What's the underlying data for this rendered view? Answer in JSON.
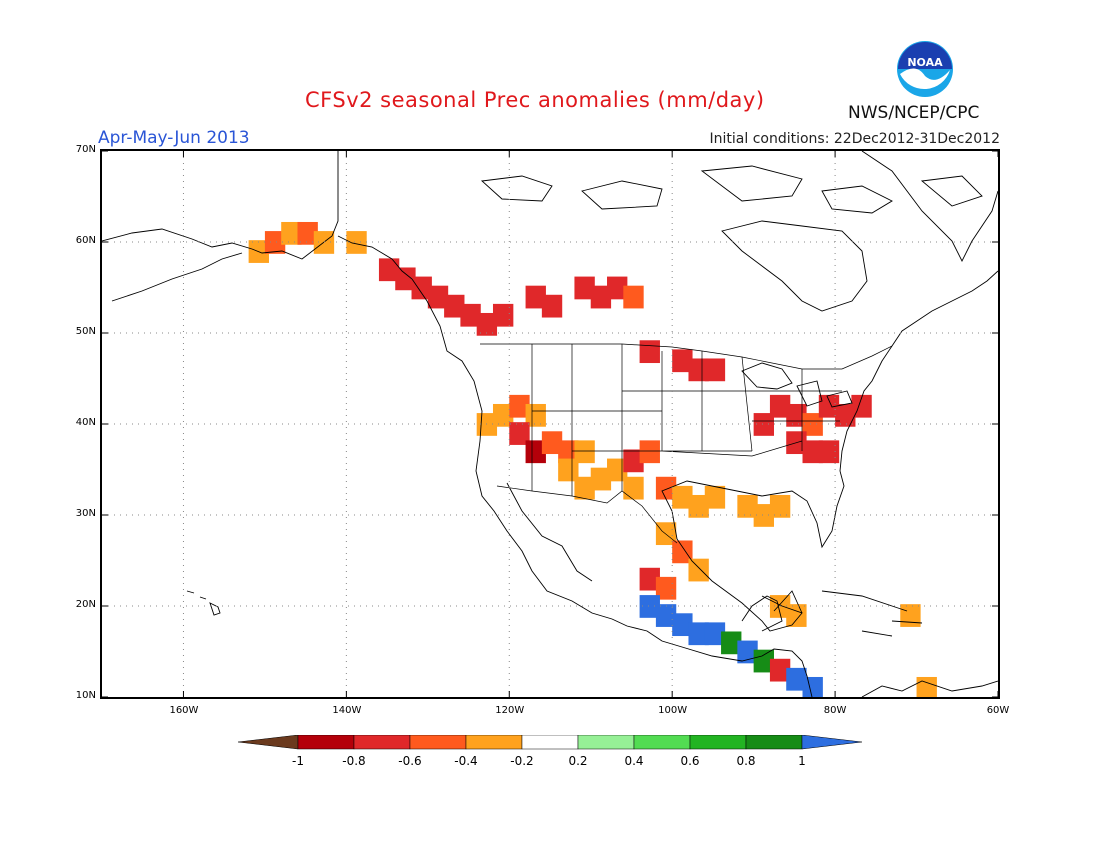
{
  "title": "CFSv2 seasonal Prec anomalies (mm/day)",
  "season": "Apr-May-Jun 2013",
  "initial_conditions": "Initial conditions: 22Dec2012-31Dec2012",
  "agency": "NWS/NCEP/CPC",
  "logo_text": "NOAA",
  "axes": {
    "lon_ticks": [
      "160W",
      "140W",
      "120W",
      "100W",
      "80W",
      "60W"
    ],
    "lat_ticks": [
      "70N",
      "60N",
      "50N",
      "40N",
      "30N",
      "20N",
      "10N"
    ],
    "lon_range": [
      -170,
      -60
    ],
    "lat_range": [
      10,
      70
    ]
  },
  "legend": {
    "labels": [
      "-1",
      "-0.8",
      "-0.6",
      "-0.4",
      "-0.2",
      "0.2",
      "0.4",
      "0.6",
      "0.8",
      "1"
    ],
    "colors": [
      "#6b3a1e",
      "#b4000a",
      "#e0282a",
      "#ff5a1e",
      "#ffa21e",
      "#ffffff",
      "#96f096",
      "#52dc52",
      "#22b422",
      "#168c16",
      "#2d6ee0"
    ]
  },
  "map_colors": {
    "land_outline": "#000000",
    "grid": "#888888"
  }
}
